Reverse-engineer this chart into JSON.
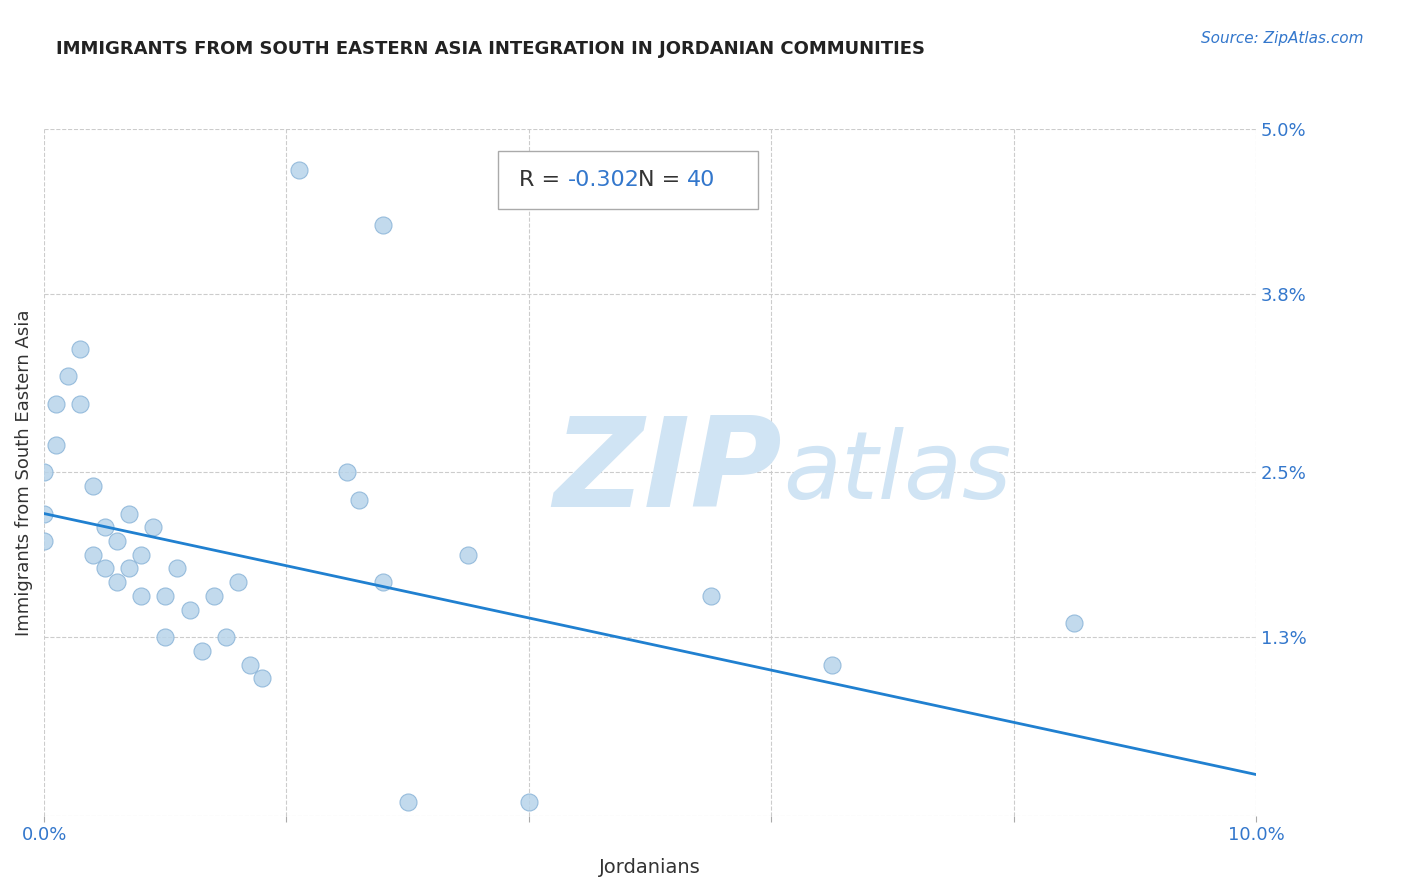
{
  "title": "IMMIGRANTS FROM SOUTH EASTERN ASIA INTEGRATION IN JORDANIAN COMMUNITIES",
  "source": "Source: ZipAtlas.com",
  "xlabel": "Jordanians",
  "ylabel": "Immigrants from South Eastern Asia",
  "xlim": [
    0,
    0.1
  ],
  "ylim": [
    0,
    0.05
  ],
  "xtick_vals": [
    0.0,
    0.02,
    0.04,
    0.06,
    0.08,
    0.1
  ],
  "xtick_labels": [
    "0.0%",
    "",
    "",
    "",
    "",
    "10.0%"
  ],
  "ytick_vals_right": [
    0.05,
    0.038,
    0.025,
    0.013,
    0.0
  ],
  "ytick_labels_right": [
    "5.0%",
    "3.8%",
    "2.5%",
    "1.3%",
    ""
  ],
  "R_val": "-0.302",
  "N_val": "40",
  "scatter_color": "#b8d4ea",
  "scatter_edge_color": "#8ab4d8",
  "line_color": "#2080d0",
  "watermark_ZIP": "ZIP",
  "watermark_atlas": "atlas",
  "watermark_color": "#d0e4f4",
  "background_color": "#ffffff",
  "grid_color": "#cccccc",
  "line_y_start": 0.022,
  "line_y_end": 0.003,
  "points_x": [
    0.001,
    0.001,
    0.002,
    0.003,
    0.003,
    0.004,
    0.004,
    0.005,
    0.005,
    0.006,
    0.006,
    0.007,
    0.007,
    0.008,
    0.008,
    0.009,
    0.01,
    0.01,
    0.011,
    0.012,
    0.013,
    0.014,
    0.015,
    0.016,
    0.017,
    0.018,
    0.025,
    0.026,
    0.028,
    0.03,
    0.035,
    0.04,
    0.055,
    0.065,
    0.085,
    0.0,
    0.0,
    0.0,
    0.021,
    0.028
  ],
  "points_y": [
    0.03,
    0.027,
    0.032,
    0.034,
    0.03,
    0.024,
    0.019,
    0.021,
    0.018,
    0.02,
    0.017,
    0.022,
    0.018,
    0.019,
    0.016,
    0.021,
    0.016,
    0.013,
    0.018,
    0.015,
    0.012,
    0.016,
    0.013,
    0.017,
    0.011,
    0.01,
    0.025,
    0.023,
    0.017,
    0.001,
    0.019,
    0.001,
    0.016,
    0.011,
    0.014,
    0.022,
    0.02,
    0.025,
    0.047,
    0.043
  ],
  "title_color": "#222222",
  "source_color": "#3377cc",
  "tick_color": "#3377cc",
  "label_color": "#333333"
}
